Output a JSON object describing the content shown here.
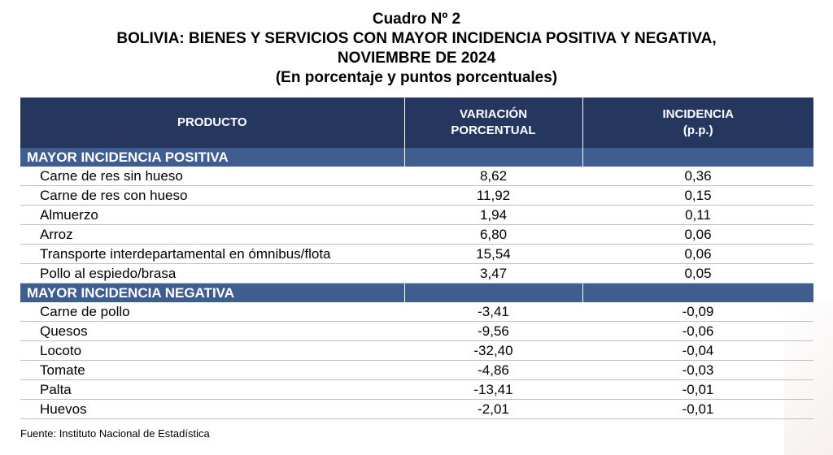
{
  "header": {
    "title": "Cuadro Nº 2",
    "subtitle_line1": "BOLIVIA: BIENES Y SERVICIOS CON MAYOR INCIDENCIA POSITIVA Y NEGATIVA,",
    "subtitle_line2": "NOVIEMBRE DE 2024",
    "units": "(En porcentaje y puntos porcentuales)"
  },
  "columns": {
    "product": "PRODUCTO",
    "variation_line1": "VARIACIÓN",
    "variation_line2": "PORCENTUAL",
    "incidence_line1": "INCIDENCIA",
    "incidence_line2": "(p.p.)"
  },
  "positive": {
    "label": "MAYOR INCIDENCIA POSITIVA",
    "rows": [
      {
        "name": "Carne de res sin hueso",
        "variation": "8,62",
        "incidence": "0,36"
      },
      {
        "name": "Carne de res con hueso",
        "variation": "11,92",
        "incidence": "0,15"
      },
      {
        "name": "Almuerzo",
        "variation": "1,94",
        "incidence": "0,11"
      },
      {
        "name": "Arroz",
        "variation": "6,80",
        "incidence": "0,06"
      },
      {
        "name": "Transporte interdepartamental en ómnibus/flota",
        "variation": "15,54",
        "incidence": "0,06"
      },
      {
        "name": "Pollo al espiedo/brasa",
        "variation": "3,47",
        "incidence": "0,05"
      }
    ]
  },
  "negative": {
    "label": "MAYOR INCIDENCIA NEGATIVA",
    "rows": [
      {
        "name": "Carne de pollo",
        "variation": "-3,41",
        "incidence": "-0,09"
      },
      {
        "name": "Quesos",
        "variation": "-9,56",
        "incidence": "-0,06"
      },
      {
        "name": "Locoto",
        "variation": "-32,40",
        "incidence": "-0,04"
      },
      {
        "name": "Tomate",
        "variation": "-4,86",
        "incidence": "-0,03"
      },
      {
        "name": "Palta",
        "variation": "-13,41",
        "incidence": "-0,01"
      },
      {
        "name": "Huevos",
        "variation": "-2,01",
        "incidence": "-0,01"
      }
    ]
  },
  "footer": {
    "source": "Fuente: Instituto Nacional de Estadística"
  }
}
